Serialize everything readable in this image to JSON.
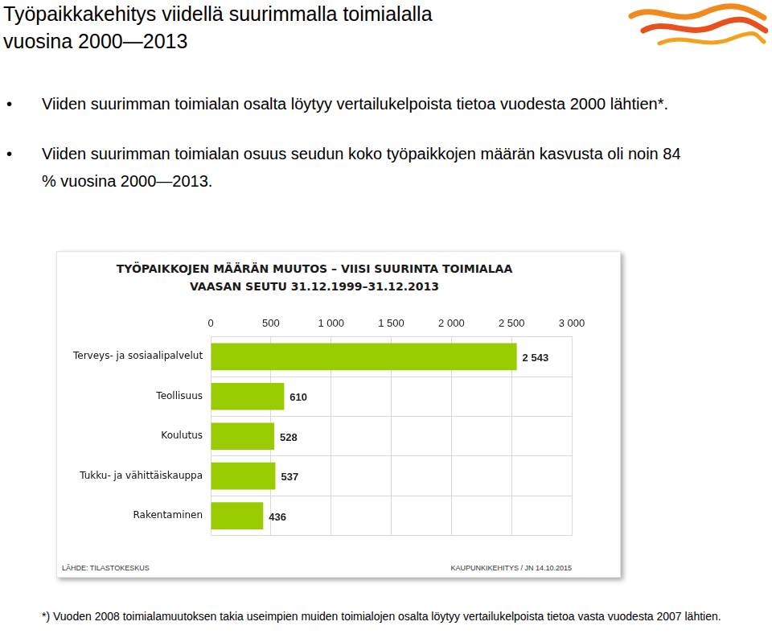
{
  "slide": {
    "title": [
      "Työpaikkakehitys viidellä suurimmalla toimialalla",
      "vuosina 2000—2013"
    ],
    "bullets": [
      "Viiden suurimman toimialan osalta löytyy vertailukelpoista tietoa vuodesta 2000 lähtien*.",
      "Viiden suurimman toimialan osuus seudun koko työpaikkojen määrän kasvusta oli noin 84 % vuosina 2000—2013."
    ],
    "footnote": "*) Vuoden 2008 toimialamuutoksen takia useimpien muiden toimialojen osalta löytyy vertailukelpoista tietoa vasta vuodesta 2007 lähtien."
  },
  "chart_data": {
    "type": "bar",
    "orientation": "horizontal",
    "title": "TYÖPAIKKOJEN MÄÄRÄN MUUTOS – VIISI SUURINTA TOIMIALAA",
    "subtitle": "VAASAN SEUTU 31.12.1999–31.12.2013",
    "annotations": [
      "LÄHDE: TILASTOKESKUS",
      "KAUPUNKIKEHITYS / JN 14.10.2015"
    ],
    "categories": [
      "Terveys- ja sosiaalipalvelut",
      "Teollisuus",
      "Koulutus",
      "Tukku- ja vähittäiskauppa",
      "Rakentaminen"
    ],
    "values": [
      2543,
      610,
      528,
      537,
      436
    ],
    "value_labels": [
      "2 543",
      "610",
      "528",
      "537",
      "436"
    ],
    "data_labels": true,
    "color": "#99cc00",
    "xlim": [
      0,
      3000
    ],
    "xticks": [
      0,
      500,
      {
        "value": 1000,
        "label": "1 000"
      },
      {
        "value": 1500,
        "label": "1 500"
      },
      {
        "value": 2000,
        "label": "2 000"
      },
      {
        "value": 2500,
        "label": "2 500"
      },
      {
        "value": 3000,
        "label": "3 000"
      }
    ],
    "grid": true
  }
}
